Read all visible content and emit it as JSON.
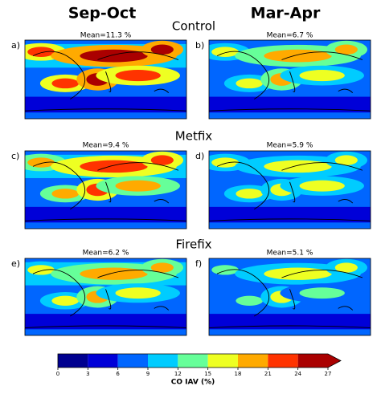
{
  "columns": [
    "Sep-Oct",
    "Mar-Apr"
  ],
  "rows": [
    {
      "title": "Control",
      "panels": [
        {
          "label": "a)",
          "mean": "Mean=11.3 %"
        },
        {
          "label": "b)",
          "mean": "Mean=6.7 %"
        }
      ]
    },
    {
      "title": "Metfix",
      "panels": [
        {
          "label": "c)",
          "mean": "Mean=9.4 %"
        },
        {
          "label": "d)",
          "mean": "Mean=5.9 %"
        }
      ]
    },
    {
      "title": "Firefix",
      "panels": [
        {
          "label": "e)",
          "mean": "Mean=6.2 %"
        },
        {
          "label": "f)",
          "mean": "Mean=5.1 %"
        }
      ]
    }
  ],
  "colorbar": {
    "label": "CO IAV (%)",
    "ticks": [
      0,
      3,
      6,
      9,
      12,
      15,
      18,
      21,
      24,
      27
    ],
    "colors": [
      "#00008f",
      "#0000d8",
      "#0066ff",
      "#00ccff",
      "#66ff99",
      "#eeff22",
      "#ffaa00",
      "#ff3300",
      "#aa0000"
    ]
  }
}
